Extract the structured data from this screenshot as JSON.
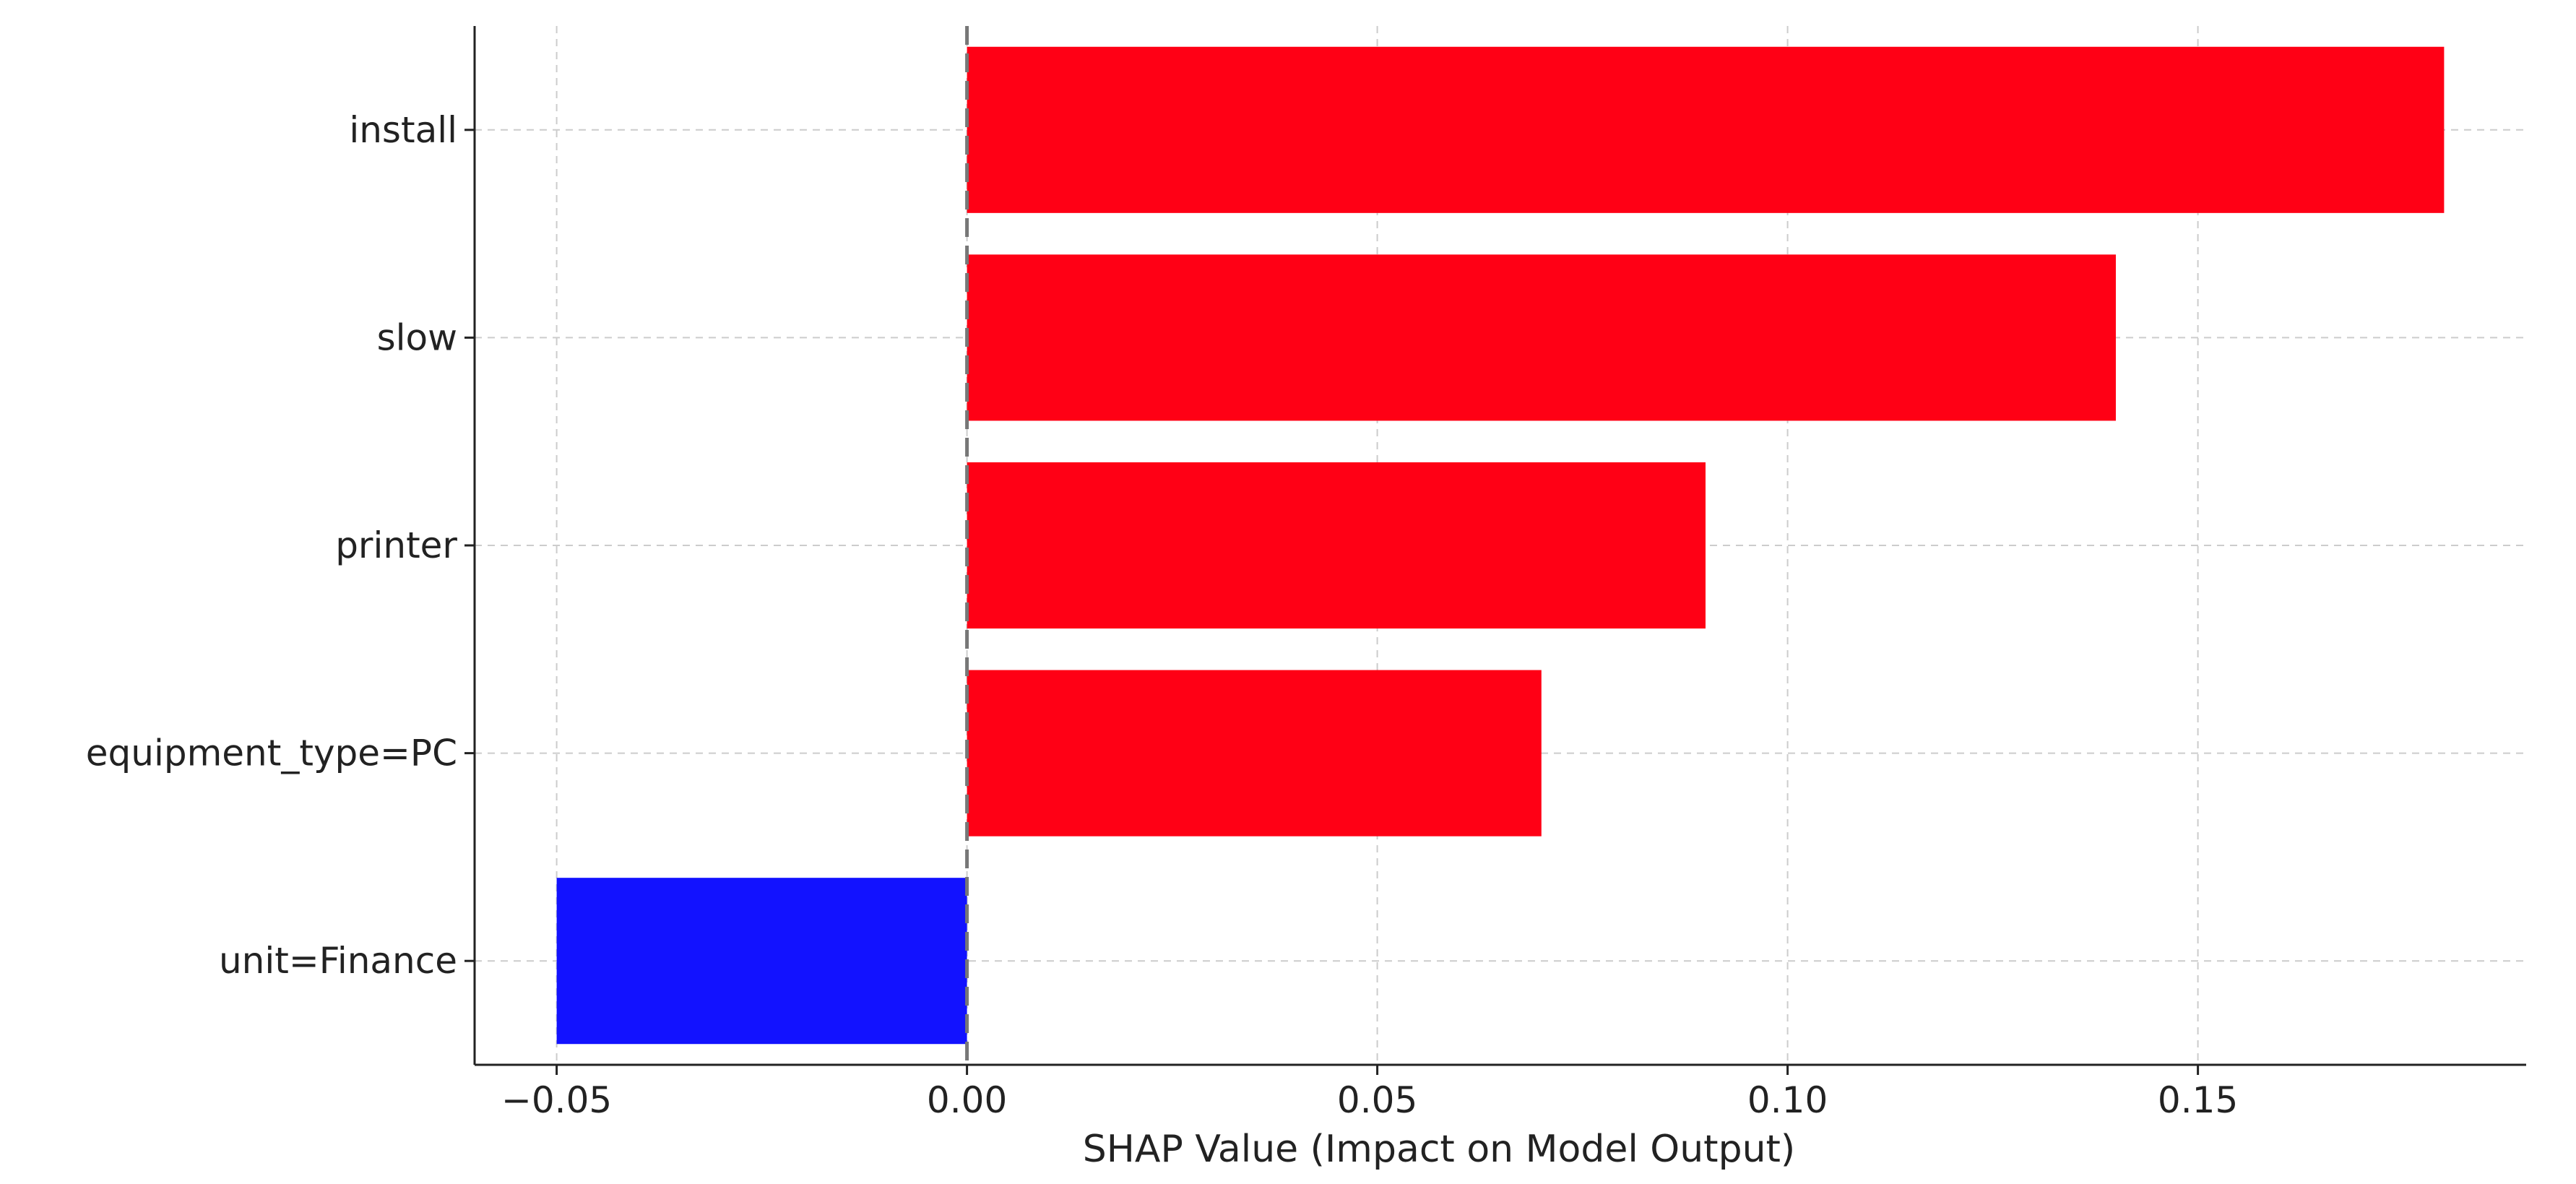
{
  "chart_data": {
    "type": "bar",
    "orientation": "horizontal",
    "title": "",
    "xlabel": "SHAP Value (Impact on Model Output)",
    "ylabel": "",
    "categories": [
      "install",
      "slow",
      "printer",
      "equipment_type=PC",
      "unit=Finance"
    ],
    "values": [
      0.18,
      0.14,
      0.09,
      0.07,
      -0.05
    ],
    "xlim": [
      -0.06,
      0.19
    ],
    "xticks": [
      -0.05,
      0.0,
      0.05,
      0.1,
      0.15
    ],
    "xtick_labels": [
      "−0.05",
      "0.00",
      "0.05",
      "0.10",
      "0.15"
    ],
    "grid": true,
    "zero_line": "dashed",
    "colors": {
      "positive": "#ff0015",
      "negative": "#1212ff",
      "grid": "#cccccc",
      "axis": "#222222",
      "zero_line": "#777777"
    }
  }
}
